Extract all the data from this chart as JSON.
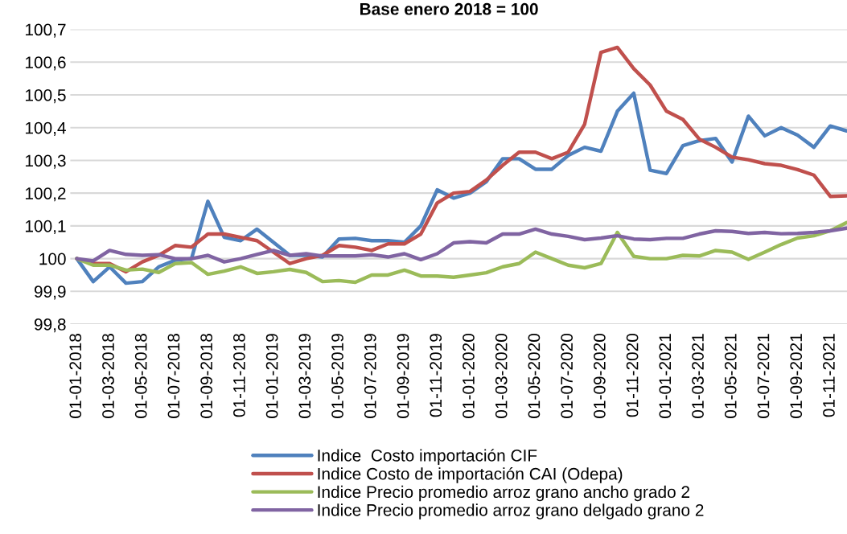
{
  "chart_data": {
    "type": "line",
    "title": "Base enero 2018 = 100",
    "categories": [
      "01-01-2018",
      null,
      "01-03-2018",
      null,
      "01-05-2018",
      null,
      "01-07-2018",
      null,
      "01-09-2018",
      null,
      "01-11-2018",
      null,
      "01-01-2019",
      null,
      "01-03-2019",
      null,
      "01-05-2019",
      null,
      "01-07-2019",
      null,
      "01-09-2019",
      null,
      "01-11-2019",
      null,
      "01-01-2020",
      null,
      "01-03-2020",
      null,
      "01-05-2020",
      null,
      "01-07-2020",
      null,
      "01-09-2020",
      null,
      "01-11-2020",
      null,
      "01-01-2021",
      null,
      "01-03-2021",
      null,
      "01-05-2021",
      null,
      "01-07-2021",
      null,
      "01-09-2021",
      null,
      "01-11-2021",
      null
    ],
    "series": [
      {
        "name": "Indice  Costo importación CIF",
        "color": "#4f81bd",
        "values": [
          100.0,
          99.93,
          99.975,
          99.925,
          99.93,
          99.975,
          99.995,
          100.0,
          100.175,
          100.065,
          100.055,
          100.09,
          100.05,
          100.01,
          100.01,
          100.005,
          100.06,
          100.062,
          100.055,
          100.055,
          100.05,
          100.1,
          100.21,
          100.185,
          100.2,
          100.235,
          100.305,
          100.305,
          100.273,
          100.273,
          100.315,
          100.34,
          100.328,
          100.45,
          100.505,
          100.27,
          100.26,
          100.345,
          100.36,
          100.367,
          100.295,
          100.435,
          100.375,
          100.4,
          100.377,
          100.34,
          100.405,
          100.39
        ]
      },
      {
        "name": "Indice Costo de importación CAI (Odepa)",
        "color": "#c0504d",
        "values": [
          100.0,
          99.985,
          99.985,
          99.96,
          99.99,
          100.01,
          100.04,
          100.035,
          100.075,
          100.075,
          100.065,
          100.055,
          100.02,
          99.985,
          100.0,
          100.01,
          100.04,
          100.035,
          100.025,
          100.045,
          100.045,
          100.075,
          100.17,
          100.2,
          100.205,
          100.24,
          100.285,
          100.325,
          100.325,
          100.305,
          100.325,
          100.41,
          100.63,
          100.645,
          100.58,
          100.53,
          100.45,
          100.425,
          100.365,
          100.34,
          100.31,
          100.302,
          100.29,
          100.285,
          100.272,
          100.255,
          100.19,
          100.192
        ]
      },
      {
        "name": "Indice Precio promedio arroz grano ancho grado 2",
        "color": "#9bbb59",
        "values": [
          100.0,
          99.98,
          99.98,
          99.965,
          99.968,
          99.958,
          99.985,
          99.988,
          99.952,
          99.962,
          99.975,
          99.955,
          99.96,
          99.967,
          99.958,
          99.93,
          99.933,
          99.928,
          99.95,
          99.95,
          99.965,
          99.947,
          99.947,
          99.943,
          99.95,
          99.957,
          99.975,
          99.985,
          100.02,
          100.0,
          99.98,
          99.972,
          99.985,
          100.08,
          100.007,
          100.0,
          100.0,
          100.01,
          100.008,
          100.025,
          100.02,
          99.998,
          100.02,
          100.043,
          100.063,
          100.07,
          100.085,
          100.11
        ]
      },
      {
        "name": "Indice Precio promedio arroz grano delgado grano 2",
        "color": "#8064a2",
        "values": [
          100.0,
          99.993,
          100.025,
          100.013,
          100.01,
          100.012,
          100.0,
          100.0,
          100.01,
          99.99,
          100.0,
          100.013,
          100.025,
          100.01,
          100.015,
          100.008,
          100.008,
          100.008,
          100.012,
          100.005,
          100.015,
          99.997,
          100.015,
          100.048,
          100.052,
          100.048,
          100.075,
          100.075,
          100.09,
          100.075,
          100.068,
          100.058,
          100.063,
          100.07,
          100.06,
          100.058,
          100.062,
          100.062,
          100.075,
          100.085,
          100.083,
          100.077,
          100.08,
          100.076,
          100.077,
          100.08,
          100.085,
          100.093
        ]
      }
    ],
    "ylim": [
      99.8,
      100.7
    ],
    "yticks": [
      {
        "value": 99.8,
        "label": "99,8"
      },
      {
        "value": 99.9,
        "label": "99,9"
      },
      100,
      {
        "value": 100.1,
        "label": "100,1"
      },
      {
        "value": 100.2,
        "label": "100,2"
      },
      {
        "value": 100.3,
        "label": "100,3"
      },
      {
        "value": 100.4,
        "label": "100,4"
      },
      {
        "value": 100.5,
        "label": "100,5"
      },
      {
        "value": 100.6,
        "label": "100,6"
      },
      {
        "value": 100.7,
        "label": "100,7"
      }
    ],
    "grid": "y",
    "legend": "bottom",
    "marker": "none",
    "line_style": "solid"
  }
}
